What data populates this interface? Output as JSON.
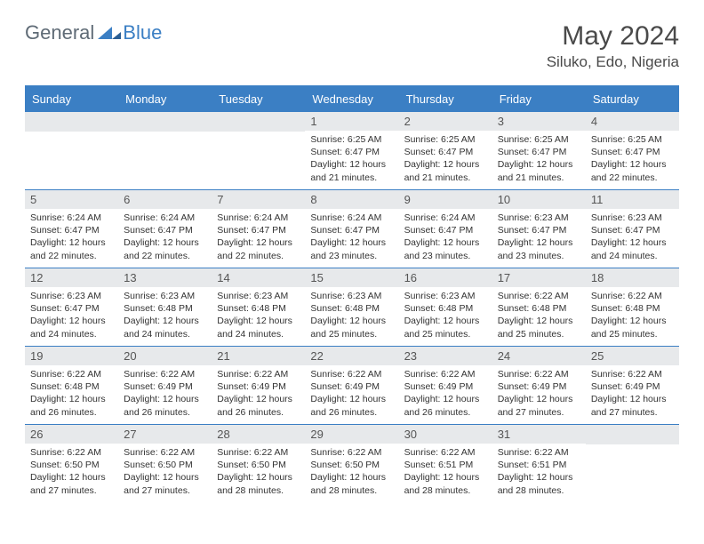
{
  "brand": {
    "part1": "General",
    "part2": "Blue"
  },
  "title": {
    "month_year": "May 2024",
    "location": "Siluko, Edo, Nigeria"
  },
  "colors": {
    "accent": "#3b7fc4",
    "header_text": "#ffffff",
    "daynum_bg": "#e7e9eb",
    "body_text": "#333333",
    "title_text": "#4a4a4a",
    "logo_gray": "#5f6b76"
  },
  "day_names": [
    "Sunday",
    "Monday",
    "Tuesday",
    "Wednesday",
    "Thursday",
    "Friday",
    "Saturday"
  ],
  "weeks": [
    [
      {
        "n": "",
        "sr": "",
        "ss": "",
        "dl": ""
      },
      {
        "n": "",
        "sr": "",
        "ss": "",
        "dl": ""
      },
      {
        "n": "",
        "sr": "",
        "ss": "",
        "dl": ""
      },
      {
        "n": "1",
        "sr": "Sunrise: 6:25 AM",
        "ss": "Sunset: 6:47 PM",
        "dl": "Daylight: 12 hours and 21 minutes."
      },
      {
        "n": "2",
        "sr": "Sunrise: 6:25 AM",
        "ss": "Sunset: 6:47 PM",
        "dl": "Daylight: 12 hours and 21 minutes."
      },
      {
        "n": "3",
        "sr": "Sunrise: 6:25 AM",
        "ss": "Sunset: 6:47 PM",
        "dl": "Daylight: 12 hours and 21 minutes."
      },
      {
        "n": "4",
        "sr": "Sunrise: 6:25 AM",
        "ss": "Sunset: 6:47 PM",
        "dl": "Daylight: 12 hours and 22 minutes."
      }
    ],
    [
      {
        "n": "5",
        "sr": "Sunrise: 6:24 AM",
        "ss": "Sunset: 6:47 PM",
        "dl": "Daylight: 12 hours and 22 minutes."
      },
      {
        "n": "6",
        "sr": "Sunrise: 6:24 AM",
        "ss": "Sunset: 6:47 PM",
        "dl": "Daylight: 12 hours and 22 minutes."
      },
      {
        "n": "7",
        "sr": "Sunrise: 6:24 AM",
        "ss": "Sunset: 6:47 PM",
        "dl": "Daylight: 12 hours and 22 minutes."
      },
      {
        "n": "8",
        "sr": "Sunrise: 6:24 AM",
        "ss": "Sunset: 6:47 PM",
        "dl": "Daylight: 12 hours and 23 minutes."
      },
      {
        "n": "9",
        "sr": "Sunrise: 6:24 AM",
        "ss": "Sunset: 6:47 PM",
        "dl": "Daylight: 12 hours and 23 minutes."
      },
      {
        "n": "10",
        "sr": "Sunrise: 6:23 AM",
        "ss": "Sunset: 6:47 PM",
        "dl": "Daylight: 12 hours and 23 minutes."
      },
      {
        "n": "11",
        "sr": "Sunrise: 6:23 AM",
        "ss": "Sunset: 6:47 PM",
        "dl": "Daylight: 12 hours and 24 minutes."
      }
    ],
    [
      {
        "n": "12",
        "sr": "Sunrise: 6:23 AM",
        "ss": "Sunset: 6:47 PM",
        "dl": "Daylight: 12 hours and 24 minutes."
      },
      {
        "n": "13",
        "sr": "Sunrise: 6:23 AM",
        "ss": "Sunset: 6:48 PM",
        "dl": "Daylight: 12 hours and 24 minutes."
      },
      {
        "n": "14",
        "sr": "Sunrise: 6:23 AM",
        "ss": "Sunset: 6:48 PM",
        "dl": "Daylight: 12 hours and 24 minutes."
      },
      {
        "n": "15",
        "sr": "Sunrise: 6:23 AM",
        "ss": "Sunset: 6:48 PM",
        "dl": "Daylight: 12 hours and 25 minutes."
      },
      {
        "n": "16",
        "sr": "Sunrise: 6:23 AM",
        "ss": "Sunset: 6:48 PM",
        "dl": "Daylight: 12 hours and 25 minutes."
      },
      {
        "n": "17",
        "sr": "Sunrise: 6:22 AM",
        "ss": "Sunset: 6:48 PM",
        "dl": "Daylight: 12 hours and 25 minutes."
      },
      {
        "n": "18",
        "sr": "Sunrise: 6:22 AM",
        "ss": "Sunset: 6:48 PM",
        "dl": "Daylight: 12 hours and 25 minutes."
      }
    ],
    [
      {
        "n": "19",
        "sr": "Sunrise: 6:22 AM",
        "ss": "Sunset: 6:48 PM",
        "dl": "Daylight: 12 hours and 26 minutes."
      },
      {
        "n": "20",
        "sr": "Sunrise: 6:22 AM",
        "ss": "Sunset: 6:49 PM",
        "dl": "Daylight: 12 hours and 26 minutes."
      },
      {
        "n": "21",
        "sr": "Sunrise: 6:22 AM",
        "ss": "Sunset: 6:49 PM",
        "dl": "Daylight: 12 hours and 26 minutes."
      },
      {
        "n": "22",
        "sr": "Sunrise: 6:22 AM",
        "ss": "Sunset: 6:49 PM",
        "dl": "Daylight: 12 hours and 26 minutes."
      },
      {
        "n": "23",
        "sr": "Sunrise: 6:22 AM",
        "ss": "Sunset: 6:49 PM",
        "dl": "Daylight: 12 hours and 26 minutes."
      },
      {
        "n": "24",
        "sr": "Sunrise: 6:22 AM",
        "ss": "Sunset: 6:49 PM",
        "dl": "Daylight: 12 hours and 27 minutes."
      },
      {
        "n": "25",
        "sr": "Sunrise: 6:22 AM",
        "ss": "Sunset: 6:49 PM",
        "dl": "Daylight: 12 hours and 27 minutes."
      }
    ],
    [
      {
        "n": "26",
        "sr": "Sunrise: 6:22 AM",
        "ss": "Sunset: 6:50 PM",
        "dl": "Daylight: 12 hours and 27 minutes."
      },
      {
        "n": "27",
        "sr": "Sunrise: 6:22 AM",
        "ss": "Sunset: 6:50 PM",
        "dl": "Daylight: 12 hours and 27 minutes."
      },
      {
        "n": "28",
        "sr": "Sunrise: 6:22 AM",
        "ss": "Sunset: 6:50 PM",
        "dl": "Daylight: 12 hours and 28 minutes."
      },
      {
        "n": "29",
        "sr": "Sunrise: 6:22 AM",
        "ss": "Sunset: 6:50 PM",
        "dl": "Daylight: 12 hours and 28 minutes."
      },
      {
        "n": "30",
        "sr": "Sunrise: 6:22 AM",
        "ss": "Sunset: 6:51 PM",
        "dl": "Daylight: 12 hours and 28 minutes."
      },
      {
        "n": "31",
        "sr": "Sunrise: 6:22 AM",
        "ss": "Sunset: 6:51 PM",
        "dl": "Daylight: 12 hours and 28 minutes."
      },
      {
        "n": "",
        "sr": "",
        "ss": "",
        "dl": ""
      }
    ]
  ]
}
